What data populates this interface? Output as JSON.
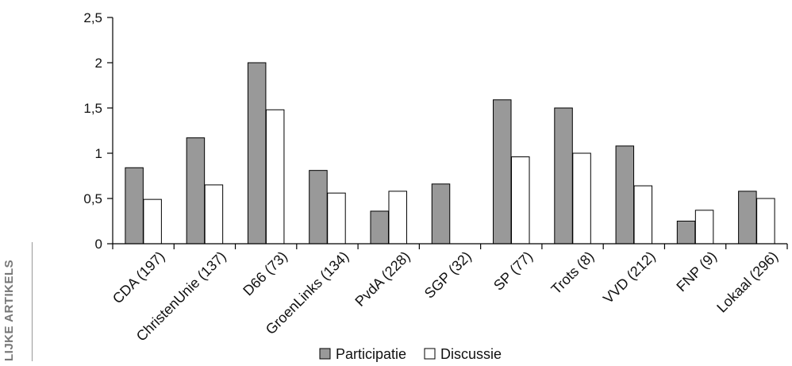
{
  "side_label": "LIJKE ARTIKELS",
  "chart_data": {
    "type": "bar",
    "categories": [
      "CDA (197)",
      "ChristenUnie (137)",
      "D66 (73)",
      "GroenLinks (134)",
      "PvdA (228)",
      "SGP (32)",
      "SP (77)",
      "Trots (8)",
      "VVD (212)",
      "FNP (9)",
      "Lokaal (296)"
    ],
    "series": [
      {
        "name": "Participatie",
        "color": "#999999",
        "values": [
          0.84,
          1.17,
          2.0,
          0.81,
          0.36,
          0.66,
          1.59,
          1.5,
          1.08,
          0.25,
          0.58
        ]
      },
      {
        "name": "Discussie",
        "color": "#ffffff",
        "values": [
          0.49,
          0.65,
          1.48,
          0.56,
          0.58,
          0,
          0.96,
          1.0,
          0.64,
          0.37,
          0.5
        ]
      }
    ],
    "yticks": [
      "0",
      "0,5",
      "1",
      "1,5",
      "2",
      "2,5"
    ],
    "ylim": [
      0,
      2.5
    ],
    "grid": false,
    "legend": "bottom"
  }
}
